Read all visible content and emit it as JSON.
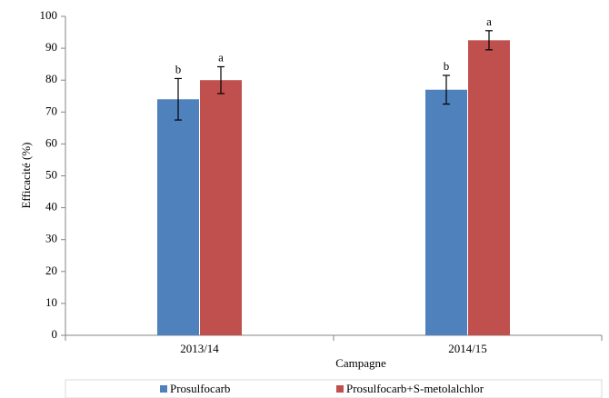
{
  "chart_data": {
    "type": "bar",
    "xlabel": "Campagne",
    "ylabel": "Efficacité (%)",
    "categories": [
      "2013/14",
      "2014/15"
    ],
    "series": [
      {
        "name": "Prosulfocarb",
        "color": "#4f81bd",
        "values": [
          74,
          77
        ],
        "errors": [
          6.5,
          4.5
        ],
        "letters": [
          "b",
          "b"
        ]
      },
      {
        "name": "Prosulfocarb+S-metolalchlor",
        "color": "#c0504d",
        "values": [
          80,
          92.5
        ],
        "errors": [
          4.2,
          3
        ],
        "letters": [
          "a",
          "a"
        ]
      }
    ],
    "ylim": [
      0,
      100
    ],
    "yticks": [
      0,
      10,
      20,
      30,
      40,
      50,
      60,
      70,
      80,
      90,
      100
    ],
    "grid": false,
    "legend": "bottom"
  }
}
